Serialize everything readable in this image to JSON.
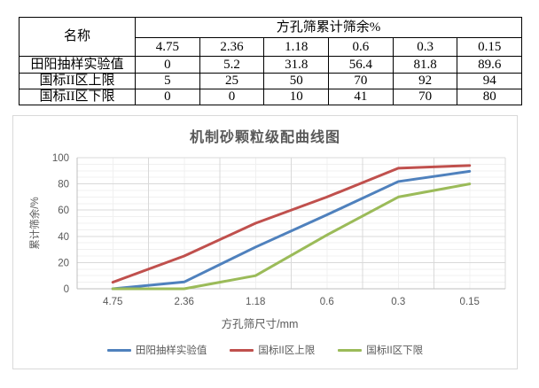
{
  "table": {
    "name_header": "名称",
    "group_header": "方孔筛累计筛余%",
    "sieve_sizes": [
      "4.75",
      "2.36",
      "1.18",
      "0.6",
      "0.3",
      "0.15"
    ],
    "rows": [
      {
        "label": "田阳抽样实验值",
        "values": [
          "0",
          "5.2",
          "31.8",
          "56.4",
          "81.8",
          "89.6"
        ]
      },
      {
        "label": "国标II区上限",
        "values": [
          "5",
          "25",
          "50",
          "70",
          "92",
          "94"
        ]
      },
      {
        "label": "国标II区下限",
        "values": [
          "0",
          "0",
          "10",
          "41",
          "70",
          "80"
        ]
      }
    ]
  },
  "chart_data": {
    "type": "line",
    "title": "机制砂颗粒级配曲线图",
    "xlabel": "方孔筛尺寸/mm",
    "ylabel": "累计筛余/%",
    "categories": [
      "4.75",
      "2.36",
      "1.18",
      "0.6",
      "0.3",
      "0.15"
    ],
    "series": [
      {
        "name": "田阳抽样实验值",
        "color": "#4F81BD",
        "values": [
          0,
          5.2,
          31.8,
          56.4,
          81.8,
          89.6
        ]
      },
      {
        "name": "国标II区上限",
        "color": "#C0504D",
        "values": [
          5,
          25,
          50,
          70,
          92,
          94
        ]
      },
      {
        "name": "国标II区下限",
        "color": "#9BBB59",
        "values": [
          0,
          0,
          10,
          41,
          70,
          80
        ]
      }
    ],
    "ylim": [
      0,
      100
    ],
    "y_ticks": [
      0,
      20,
      40,
      60,
      80,
      100
    ],
    "y_minor_step": 5,
    "grid": true,
    "legend_position": "bottom"
  },
  "colors": {
    "major_grid": "#d9d9d9",
    "minor_grid": "#f0f0f0",
    "axis_line": "#bfbfbf",
    "axis_text": "#595959",
    "title_text": "#595959",
    "chart_border": "#d9d9d9",
    "table_border": "#000000"
  }
}
